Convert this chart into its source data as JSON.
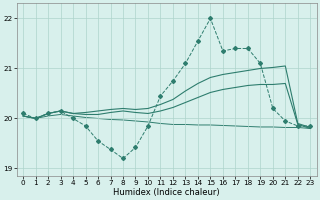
{
  "xlabel": "Humidex (Indice chaleur)",
  "bg_color": "#d8f0ec",
  "line_color": "#2e7d6e",
  "grid_color": "#aed4cc",
  "xlim": [
    -0.5,
    23.5
  ],
  "ylim": [
    18.85,
    22.3
  ],
  "yticks": [
    19,
    20,
    21,
    22
  ],
  "xticks": [
    0,
    1,
    2,
    3,
    4,
    5,
    6,
    7,
    8,
    9,
    10,
    11,
    12,
    13,
    14,
    15,
    16,
    17,
    18,
    19,
    20,
    21,
    22,
    23
  ],
  "dashed_x": [
    0,
    1,
    2,
    3,
    4,
    5,
    6,
    7,
    8,
    9,
    10,
    11,
    12,
    13,
    14,
    15,
    16,
    17,
    18,
    19,
    20,
    21,
    22,
    23
  ],
  "dashed_y": [
    20.1,
    20.0,
    20.1,
    20.15,
    20.0,
    19.85,
    19.55,
    19.38,
    19.2,
    19.42,
    19.85,
    20.45,
    20.75,
    21.1,
    21.55,
    22.0,
    21.35,
    21.4,
    21.4,
    21.1,
    20.2,
    19.95,
    19.85,
    19.85
  ],
  "line2_x": [
    0,
    1,
    2,
    3,
    4,
    5,
    6,
    7,
    8,
    9,
    10,
    11,
    12,
    13,
    14,
    15,
    16,
    17,
    18,
    19,
    20,
    21,
    22,
    23
  ],
  "line2_y": [
    20.05,
    20.0,
    20.1,
    20.15,
    20.1,
    20.12,
    20.15,
    20.18,
    20.2,
    20.18,
    20.2,
    20.28,
    20.38,
    20.55,
    20.7,
    20.82,
    20.88,
    20.92,
    20.96,
    21.0,
    21.02,
    21.05,
    19.9,
    19.82
  ],
  "line3_x": [
    0,
    1,
    2,
    3,
    4,
    5,
    6,
    7,
    8,
    9,
    10,
    11,
    12,
    13,
    14,
    15,
    16,
    17,
    18,
    19,
    20,
    21,
    22,
    23
  ],
  "line3_y": [
    20.05,
    20.0,
    20.1,
    20.15,
    20.1,
    20.08,
    20.08,
    20.12,
    20.15,
    20.12,
    20.1,
    20.15,
    20.22,
    20.32,
    20.42,
    20.52,
    20.58,
    20.62,
    20.66,
    20.68,
    20.68,
    20.7,
    19.88,
    19.8
  ],
  "line4_x": [
    0,
    1,
    2,
    3,
    4,
    5,
    6,
    7,
    8,
    9,
    10,
    11,
    12,
    13,
    14,
    15,
    16,
    17,
    18,
    19,
    20,
    21,
    22,
    23
  ],
  "line4_y": [
    20.05,
    20.0,
    20.05,
    20.08,
    20.05,
    20.02,
    20.0,
    19.98,
    19.97,
    19.95,
    19.93,
    19.9,
    19.88,
    19.88,
    19.87,
    19.87,
    19.86,
    19.85,
    19.84,
    19.83,
    19.83,
    19.82,
    19.82,
    19.8
  ]
}
